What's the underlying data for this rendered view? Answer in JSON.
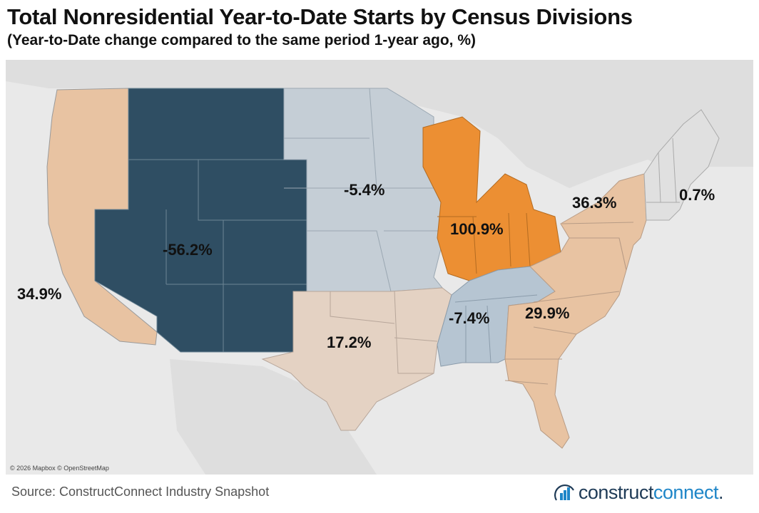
{
  "title": "Total Nonresidential Year-to-Date Starts by Census Divisions",
  "subtitle": "(Year-to-Date change compared to the same period 1-year ago, %)",
  "map_credit": "© 2026 Mapbox © OpenStreetMap",
  "source": "Source: ConstructConnect Industry Snapshot",
  "logo": {
    "part1": "construct",
    "part2": "connect",
    "suffix": ".",
    "icon": "building-logo-icon"
  },
  "colors": {
    "pacific": "#e8c3a2",
    "mountain": "#2f4e63",
    "west_north_central": "#c5ced6",
    "east_north_central": "#ec8f33",
    "west_south_central": "#e4d2c3",
    "east_south_central": "#b6c5d2",
    "south_atlantic": "#e8c3a2",
    "middle_atlantic": "#e8c3a2",
    "new_england": "#e0e0e0",
    "background": "#e9e9e9"
  },
  "divisions": [
    {
      "key": "pacific",
      "label": "34.9%"
    },
    {
      "key": "mountain",
      "label": "-56.2%"
    },
    {
      "key": "west_north_central",
      "label": "-5.4%"
    },
    {
      "key": "east_north_central",
      "label": "100.9%"
    },
    {
      "key": "west_south_central",
      "label": "17.2%"
    },
    {
      "key": "east_south_central",
      "label": "-7.4%"
    },
    {
      "key": "south_atlantic",
      "label": "29.9%"
    },
    {
      "key": "middle_atlantic",
      "label": "36.3%"
    },
    {
      "key": "new_england",
      "label": "0.7%"
    }
  ]
}
